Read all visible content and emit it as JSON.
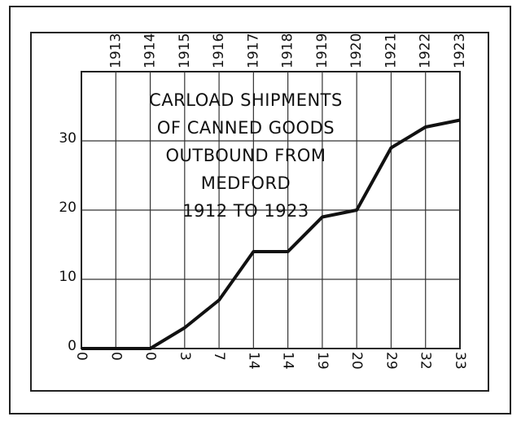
{
  "chart_data": {
    "type": "line",
    "title": [
      "CARLOAD SHIPMENTS",
      "OF CANNED GOODS",
      "OUTBOUND FROM",
      "MEDFORD",
      "1912 TO 1923"
    ],
    "categories": [
      null,
      "1913",
      "1914",
      "1915",
      "1916",
      "1917",
      "1918",
      "1919",
      "1920",
      "1921",
      "1922",
      "1923"
    ],
    "values": [
      0,
      0,
      0,
      3,
      7,
      14,
      14,
      19,
      20,
      29,
      32,
      33
    ],
    "color": "#111111",
    "ylim": [
      0,
      40
    ],
    "yticks": [
      0,
      10,
      20,
      30
    ],
    "grid": true
  }
}
